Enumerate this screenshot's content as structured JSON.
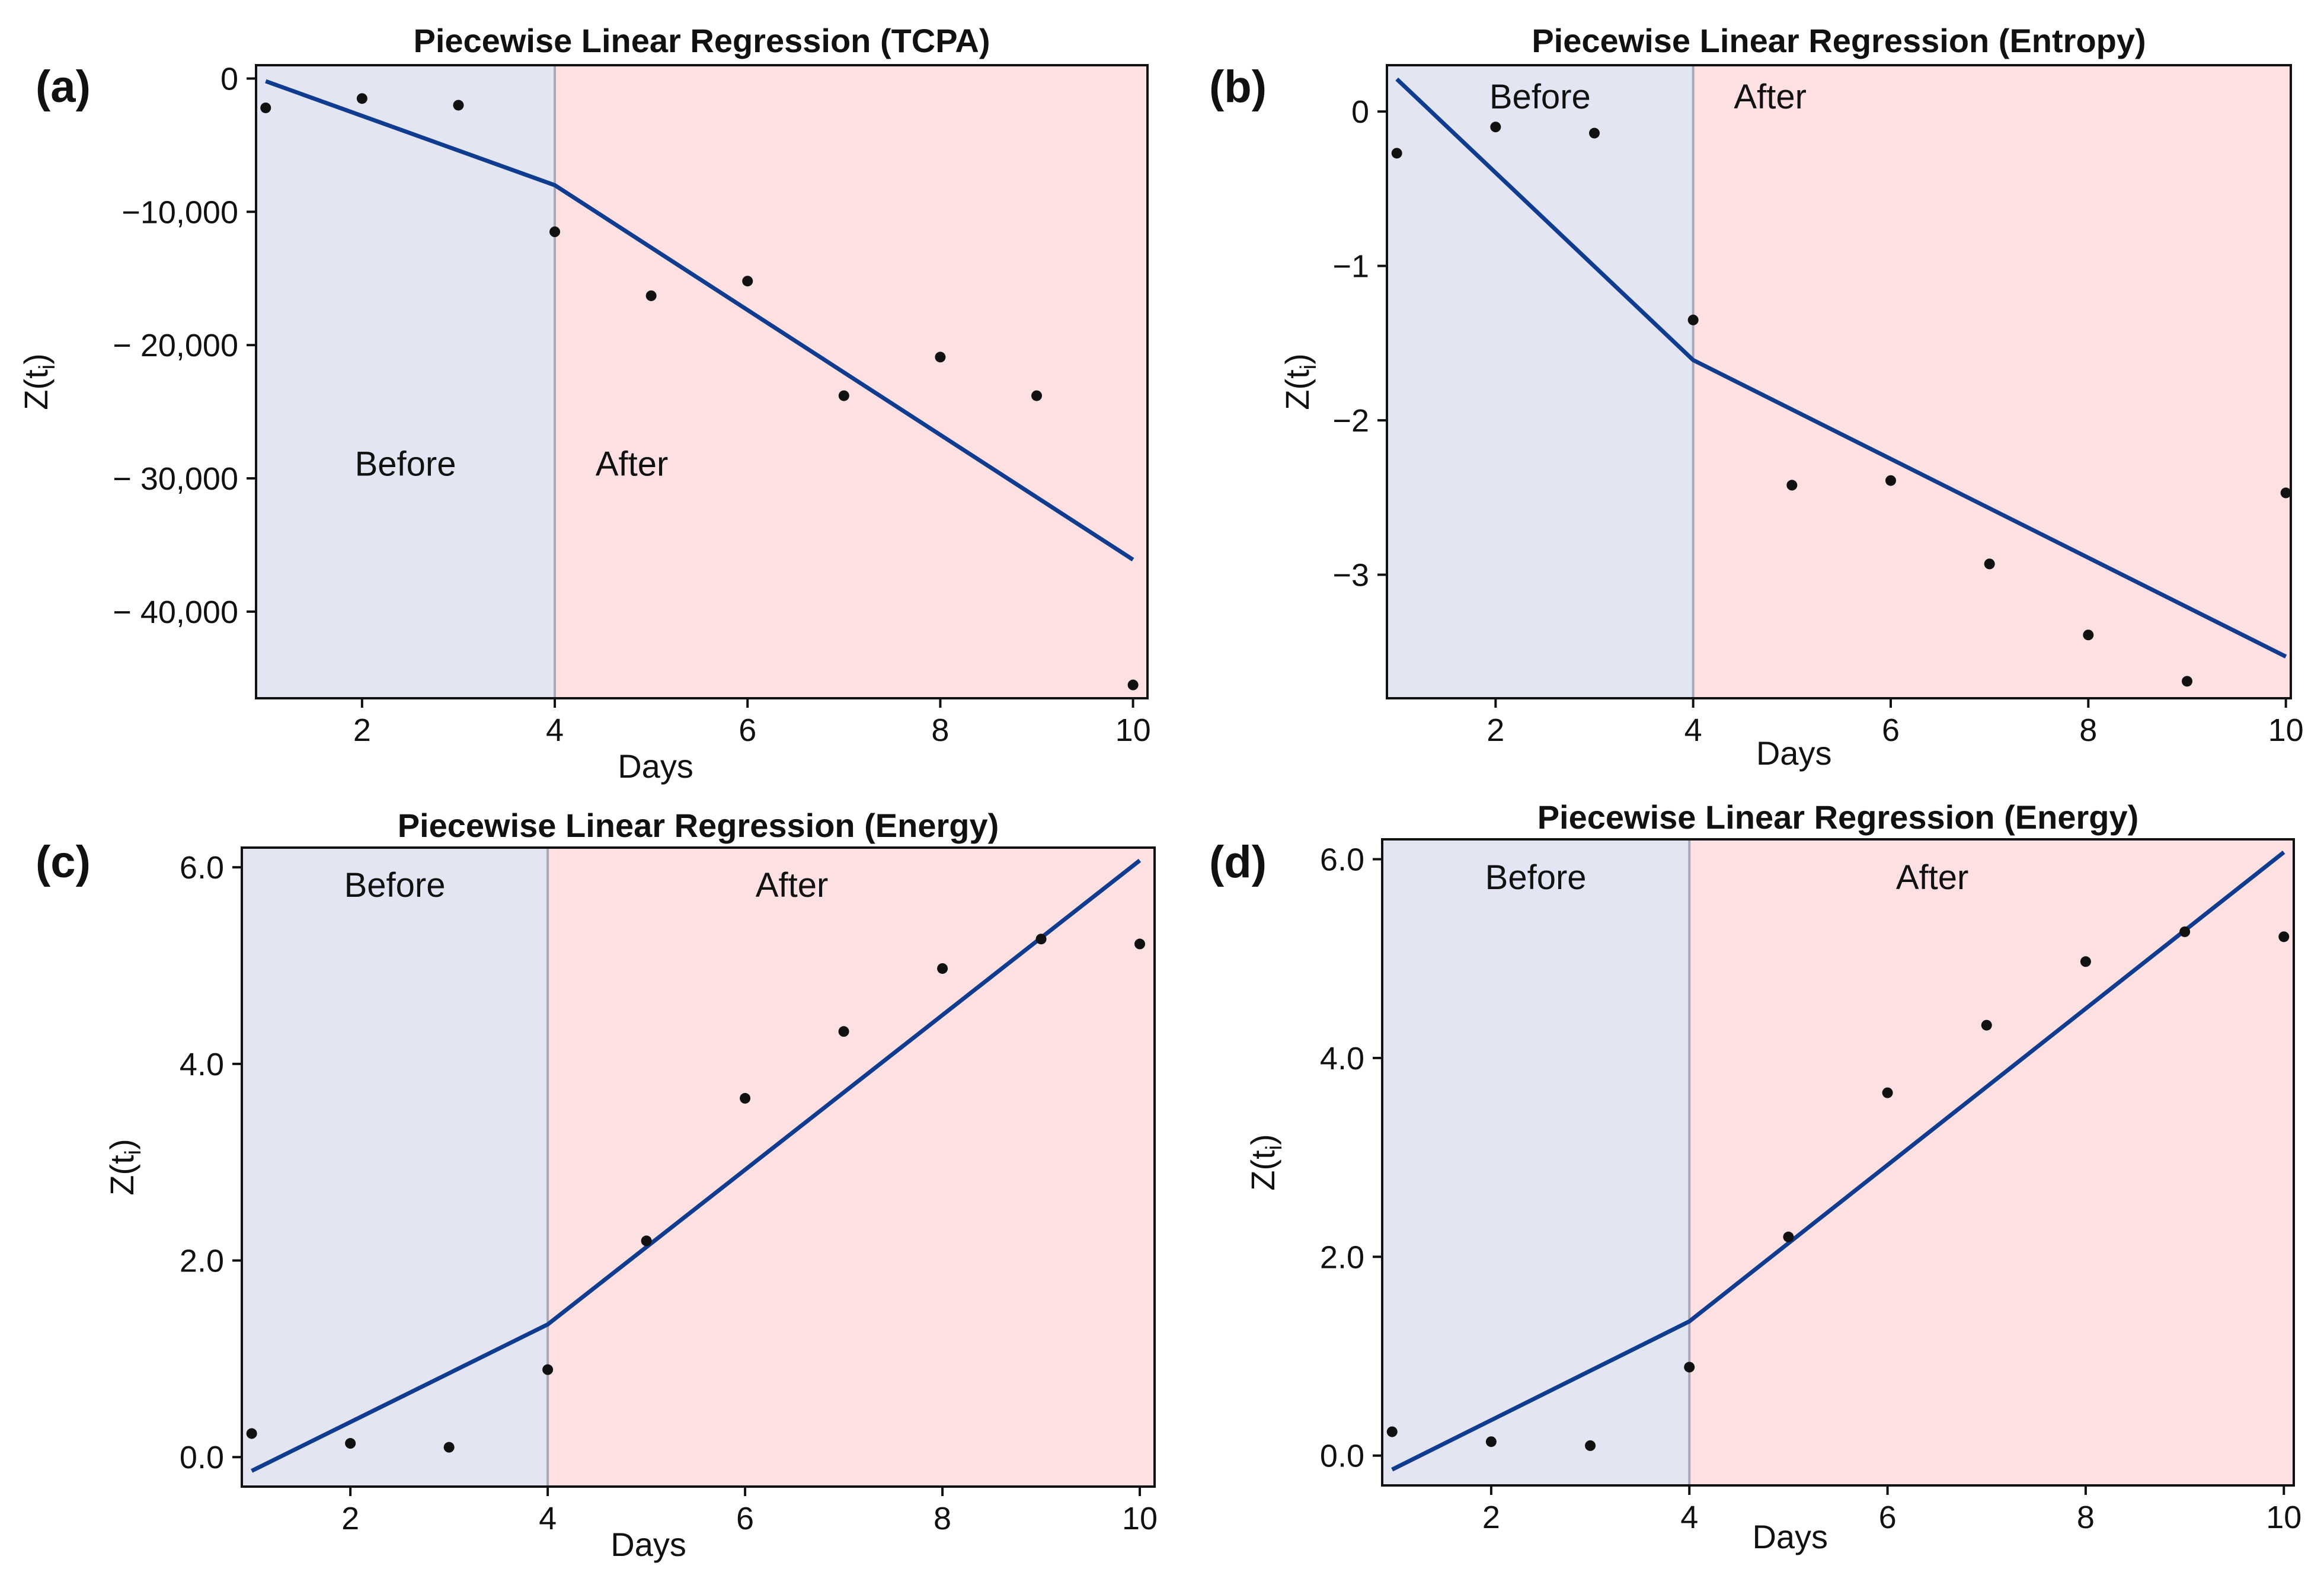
{
  "figure": {
    "background": "#ffffff",
    "region_colors": {
      "before": "#e3e5f2",
      "after": "#fde0e2"
    },
    "line_color": "#103c8f",
    "point_color": "#111111",
    "divider_color": "#a8a8b8"
  },
  "chart_data": [
    {
      "id": "a",
      "panel_label": "(a)",
      "type": "scatter",
      "title": "Piecewise Linear Regression (TCPA)",
      "xlabel": "Days",
      "ylabel_main": "Z(t",
      "ylabel_sub": "i",
      "ylabel_close": ")",
      "xlim": [
        0.9,
        10.15
      ],
      "ylim": [
        -46500,
        1000
      ],
      "xticks": [
        2,
        4,
        6,
        8,
        10
      ],
      "xtick_labels": [
        "2",
        "4",
        "6",
        "8",
        "10"
      ],
      "yticks": [
        0,
        -10000,
        -20000,
        -30000,
        -40000
      ],
      "ytick_labels": [
        "0",
        "−10,000",
        "− 20,000",
        "− 30,000",
        "− 40,000"
      ],
      "breakpoint": 4,
      "region_labels": {
        "before": "Before",
        "after": "After"
      },
      "region_label_y": -29800,
      "points": {
        "x": [
          1,
          2,
          3,
          4,
          5,
          6,
          7,
          8,
          9,
          10
        ],
        "y": [
          -2200,
          -1500,
          -2000,
          -11500,
          -16300,
          -15200,
          -23800,
          -20900,
          -23800,
          -45500
        ]
      },
      "fit": {
        "x": [
          1,
          4,
          10
        ],
        "y": [
          -200,
          -8000,
          -36100
        ]
      }
    },
    {
      "id": "b",
      "panel_label": "(b)",
      "type": "scatter",
      "title": "Piecewise Linear Regression (Entropy)",
      "xlabel": "Days",
      "ylabel_main": "Z(t",
      "ylabel_sub": "i",
      "ylabel_close": ")",
      "xlim": [
        0.9,
        10.05
      ],
      "ylim": [
        -3.8,
        0.3
      ],
      "xticks": [
        2,
        4,
        6,
        8,
        10
      ],
      "xtick_labels": [
        "2",
        "4",
        "6",
        "8",
        "10"
      ],
      "yticks": [
        0,
        -1,
        -2,
        -3
      ],
      "ytick_labels": [
        "0",
        "−1",
        "−2",
        "−3"
      ],
      "breakpoint": 4,
      "region_labels": {
        "before": "Before",
        "after": "After"
      },
      "region_label_y": 0.02,
      "points": {
        "x": [
          1,
          2,
          3,
          4,
          5,
          6,
          7,
          8,
          9,
          10
        ],
        "y": [
          -0.27,
          -0.1,
          -0.14,
          -1.35,
          -2.42,
          -2.39,
          -2.93,
          -3.39,
          -3.69,
          -2.47
        ]
      },
      "fit": {
        "x": [
          1,
          4,
          10
        ],
        "y": [
          0.21,
          -1.61,
          -3.53
        ]
      }
    },
    {
      "id": "c",
      "panel_label": "(c)",
      "type": "scatter",
      "title": "Piecewise Linear Regression (Energy)",
      "xlabel": "Days",
      "ylabel_main": "Z(t",
      "ylabel_sub": "i",
      "ylabel_close": ")",
      "xlim": [
        0.9,
        10.15
      ],
      "ylim": [
        -0.3,
        6.2
      ],
      "xticks": [
        2,
        4,
        6,
        8,
        10
      ],
      "xtick_labels": [
        "2",
        "4",
        "6",
        "8",
        "10"
      ],
      "yticks": [
        0,
        2,
        4,
        6
      ],
      "ytick_labels": [
        "0.0",
        "2.0",
        "4.0",
        "6.0"
      ],
      "breakpoint": 4,
      "region_labels": {
        "before": "Before",
        "after": "After"
      },
      "region_label_y": 5.7,
      "points": {
        "x": [
          1,
          2,
          3,
          4,
          5,
          6,
          7,
          8,
          9,
          10
        ],
        "y": [
          0.24,
          0.14,
          0.1,
          0.89,
          2.2,
          3.65,
          4.33,
          4.97,
          5.27,
          5.22
        ]
      },
      "fit": {
        "x": [
          1,
          4,
          10
        ],
        "y": [
          -0.14,
          1.35,
          6.07
        ]
      }
    },
    {
      "id": "d",
      "panel_label": "(d)",
      "type": "scatter",
      "title": "Piecewise Linear Regression (Energy)",
      "xlabel": "Days",
      "ylabel_main": "Z(t",
      "ylabel_sub": "i",
      "ylabel_close": ")",
      "xlim": [
        0.9,
        10.1
      ],
      "ylim": [
        -0.3,
        6.2
      ],
      "xticks": [
        2,
        4,
        6,
        8,
        10
      ],
      "xtick_labels": [
        "2",
        "4",
        "6",
        "8",
        "10"
      ],
      "yticks": [
        0,
        2,
        4,
        6
      ],
      "ytick_labels": [
        "0.0",
        "2.0",
        "4.0",
        "6.0"
      ],
      "breakpoint": 4,
      "region_labels": {
        "before": "Before",
        "after": "After"
      },
      "region_label_y": 5.7,
      "points": {
        "x": [
          1,
          2,
          3,
          4,
          5,
          6,
          7,
          8,
          9,
          10
        ],
        "y": [
          0.24,
          0.14,
          0.1,
          0.89,
          2.2,
          3.65,
          4.33,
          4.97,
          5.27,
          5.22
        ]
      },
      "fit": {
        "x": [
          1,
          4,
          10
        ],
        "y": [
          -0.14,
          1.35,
          6.07
        ]
      }
    }
  ]
}
